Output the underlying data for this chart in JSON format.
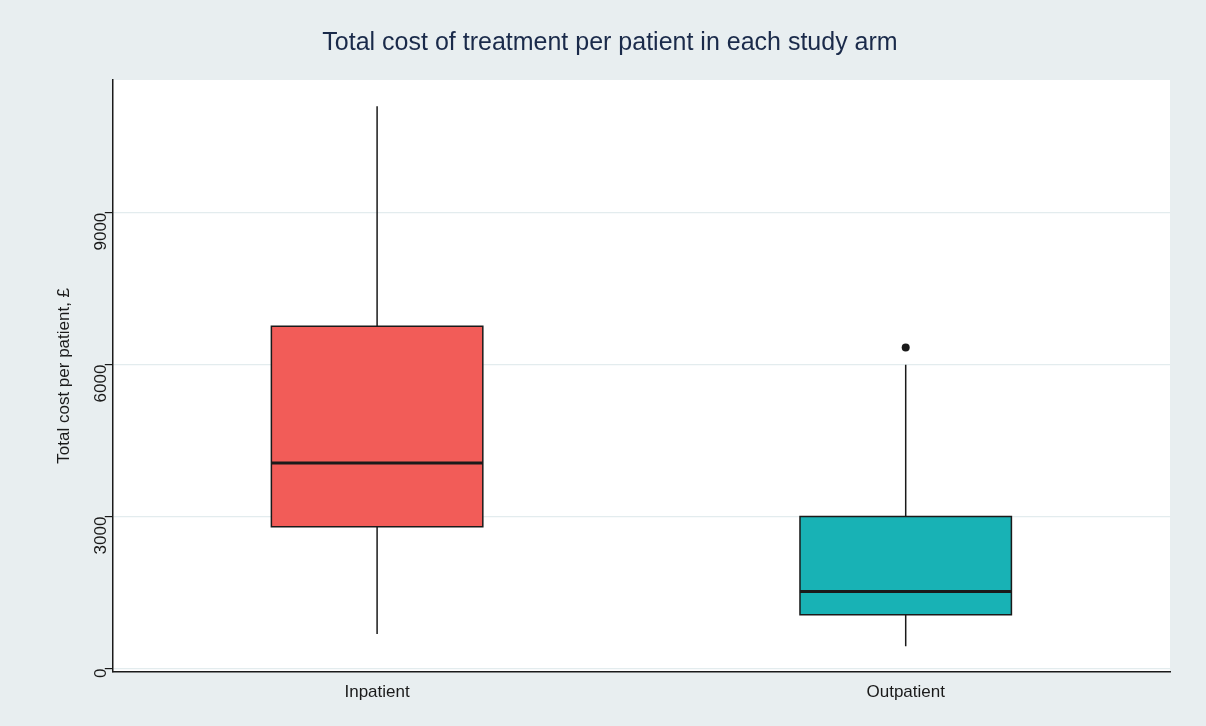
{
  "chart_data": {
    "type": "box",
    "title": "Total cost of treatment per patient in each study arm",
    "ylabel": "Total cost per patient, £",
    "categories": [
      "Inpatient",
      "Outpatient"
    ],
    "boxes": [
      {
        "low": 680,
        "q1": 2800,
        "median": 4060,
        "q3": 6760,
        "high": 11100
      },
      {
        "low": 440,
        "q1": 1060,
        "median": 1520,
        "q3": 3000,
        "high": 6000,
        "outliers": [
          6340
        ]
      }
    ],
    "colors": [
      "#f25c58",
      "#18b2b5"
    ],
    "ylim": [
      -60,
      11620
    ],
    "yticks": [
      0,
      3000,
      6000,
      9000
    ],
    "grid": "y"
  }
}
